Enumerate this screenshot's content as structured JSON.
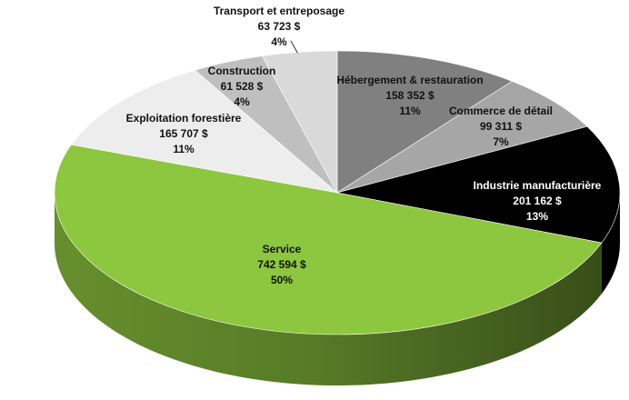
{
  "chart_data": {
    "type": "pie",
    "three_d": true,
    "start_angle_deg": 0,
    "direction": "clockwise",
    "slices": [
      {
        "label": "Hébergement & restauration",
        "value_text": "158 352 $",
        "pct_text": "11%",
        "value": 158352,
        "color": "#808080",
        "label_color": "#111111"
      },
      {
        "label": "Commerce de détail",
        "value_text": "99 311 $",
        "pct_text": "7%",
        "value": 99311,
        "color": "#a6a6a6",
        "label_color": "#111111"
      },
      {
        "label": "Industrie manufacturière",
        "value_text": "201 162 $",
        "pct_text": "13%",
        "value": 201162,
        "color": "#000000",
        "label_color": "#ffffff"
      },
      {
        "label": "Service",
        "value_text": "742 594 $",
        "pct_text": "50%",
        "value": 742594,
        "color": "#8dc63f",
        "label_color": "#111111"
      },
      {
        "label": "Exploitation forestière",
        "value_text": "165 707 $",
        "pct_text": "11%",
        "value": 165707,
        "color": "#ededed",
        "label_color": "#111111"
      },
      {
        "label": "Construction",
        "value_text": "61 528 $",
        "pct_text": "4%",
        "value": 61528,
        "color": "#bfbfbf",
        "label_color": "#111111"
      },
      {
        "label": "Transport et entreposage",
        "value_text": "63 723 $",
        "pct_text": "4%",
        "value": 63723,
        "color": "#d9d9d9",
        "label_color": "#111111"
      }
    ]
  }
}
